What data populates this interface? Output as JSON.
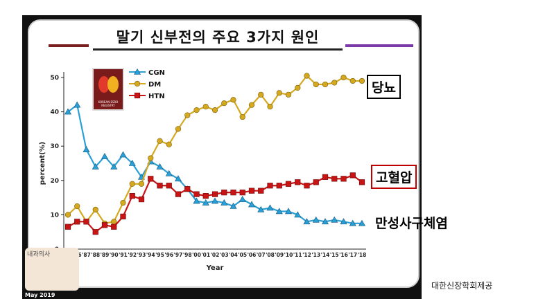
{
  "title": "말기 신부전의 주요 3가지 원인",
  "right_labels": {
    "dm": "당뇨",
    "htn": "고혈압",
    "cgn": "만성사구체염"
  },
  "credit": "대한신장학회제공",
  "footer": "May 2019",
  "logo_text": "KOREAN ESRD REGISTRY",
  "avatar_text": "내과의사",
  "colors": {
    "cgn": "#2a9fd6",
    "dm": "#d4a81f",
    "htn": "#c81414"
  },
  "chart_data": {
    "type": "line",
    "xlabel": "Year",
    "ylabel": "percent(%)",
    "ylim": [
      0,
      50
    ],
    "yticks": [
      0,
      10,
      20,
      30,
      40,
      50
    ],
    "x": [
      "'85",
      "'86",
      "'87",
      "'88",
      "'89",
      "'90",
      "'91",
      "'92",
      "'93",
      "'94",
      "'95",
      "'96",
      "'97",
      "'98",
      "'00",
      "'01",
      "'02",
      "'03",
      "'04",
      "'05",
      "'06",
      "'07",
      "'08",
      "'09",
      "'10",
      "'11",
      "'12",
      "'13",
      "'14",
      "'15",
      "'16",
      "'17",
      "'18"
    ],
    "legend_position": "top-left",
    "series": [
      {
        "name": "CGN",
        "marker": "triangle",
        "values": [
          40,
          42,
          29,
          24,
          27,
          24,
          27.5,
          25,
          21,
          25.5,
          24,
          22,
          20.5,
          17.5,
          14,
          13.5,
          14,
          13.5,
          12.5,
          14.5,
          13,
          11.5,
          12,
          11,
          11,
          10,
          8,
          8.5,
          8,
          8.5,
          8,
          7.5,
          7.5
        ]
      },
      {
        "name": "DM",
        "marker": "circle",
        "values": [
          10,
          12.5,
          8,
          11.5,
          7.5,
          8,
          13.5,
          19,
          19,
          26.5,
          31.5,
          30.5,
          35,
          39,
          40.5,
          41.5,
          40.5,
          42.5,
          43.5,
          38.5,
          42,
          45,
          41.5,
          45.5,
          45,
          47,
          50.5,
          48,
          48,
          48.5,
          50,
          49,
          49
        ]
      },
      {
        "name": "HTN",
        "marker": "square",
        "values": [
          6.5,
          8,
          8,
          5,
          7,
          6.5,
          9.5,
          15.5,
          14.5,
          20.5,
          18.5,
          18.5,
          16,
          17.5,
          16,
          15.5,
          16,
          16.5,
          16.5,
          16.5,
          17,
          17,
          18.5,
          18.5,
          19,
          19.5,
          18.5,
          19.5,
          21,
          20.5,
          20.5,
          21.5,
          19.5
        ]
      }
    ]
  }
}
